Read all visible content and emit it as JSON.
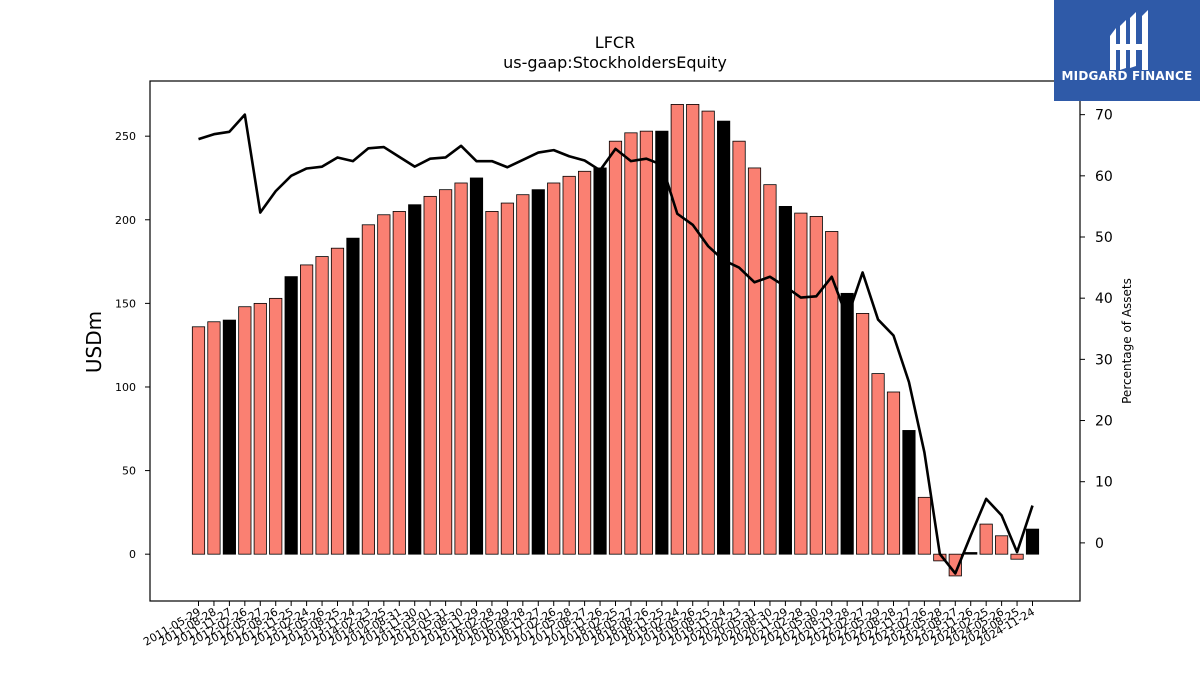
{
  "chart_data": {
    "type": "bar",
    "title": "LFCR",
    "subtitle": "us-gaap:StockholdersEquity",
    "ylabel": "USDm",
    "y2label": "Percentage of Assets",
    "ylim": [
      -28,
      283
    ],
    "y2lim": [
      -9.5,
      75.5
    ],
    "yticks": [
      0,
      50,
      100,
      150,
      200,
      250
    ],
    "y2ticks": [
      0,
      10,
      20,
      30,
      40,
      50,
      60,
      70
    ],
    "colors": {
      "bar": "#fa8072",
      "bar_highlight": "#000000",
      "line": "#000000"
    },
    "categories": [
      "2011-05-29",
      "2011-08-28",
      "2011-11-27",
      "2012-02-26",
      "2012-05-27",
      "2012-08-26",
      "2012-11-25",
      "2013-02-24",
      "2013-05-26",
      "2013-08-25",
      "2013-11-24",
      "2014-02-23",
      "2014-05-25",
      "2014-08-31",
      "2014-11-30",
      "2015-03-01",
      "2015-05-31",
      "2015-08-30",
      "2015-11-29",
      "2016-02-28",
      "2016-05-29",
      "2016-08-28",
      "2016-11-27",
      "2017-02-26",
      "2017-05-28",
      "2017-08-27",
      "2017-11-26",
      "2018-02-25",
      "2018-05-27",
      "2018-08-26",
      "2018-11-25",
      "2019-02-24",
      "2019-05-26",
      "2019-08-25",
      "2019-11-24",
      "2020-02-23",
      "2020-05-31",
      "2020-08-30",
      "2020-11-29",
      "2021-02-28",
      "2021-05-30",
      "2021-08-29",
      "2021-11-28",
      "2022-02-27",
      "2022-05-29",
      "2022-08-28",
      "2022-11-27",
      "2023-02-26",
      "2023-05-28",
      "2023-08-27",
      "2023-11-26",
      "2024-02-25",
      "2024-05-26",
      "2024-08-25",
      "2024-11-24"
    ],
    "tick_labels": [
      "2011-05-29",
      "2011-08-28",
      "2011-11-27",
      "2012-02-26",
      "2012-05-27",
      "2012-08-26",
      "2012-11-25",
      "2013-02-24",
      "2013-05-26",
      "2013-08-25",
      "2013-11-24",
      "2014-02-23",
      "2014-05-25",
      "2014-08-31",
      "2014-11-30",
      "2015-03-01",
      "2015-05-31",
      "2015-08-30",
      "2015-11-29",
      "2016-02-28",
      "2016-05-29",
      "2016-08-28",
      "2016-11-27",
      "2017-02-26",
      "2017-05-28",
      "2017-08-27",
      "2017-11-26",
      "2018-02-25",
      "2018-05-27",
      "2018-08-26",
      "2018-11-25",
      "2019-02-24",
      "2019-05-26",
      "2019-08-25",
      "2019-11-24",
      "2020-02-23",
      "2020-05-31",
      "2020-08-30",
      "2020-11-29",
      "2021-02-28",
      "2021-05-30",
      "2021-08-29",
      "2021-11-28",
      "2022-02-27",
      "2022-05-29",
      "2022-08-28",
      "2022-11-27",
      "2023-02-26",
      "2023-05-28",
      "2023-08-27",
      "2023-11-26",
      "2024-02-25",
      "2024-05-26",
      "2024-08-25",
      "2024-11-24"
    ],
    "series": [
      {
        "name": "StockholdersEquity",
        "type": "bar",
        "axis": "left",
        "values": [
          136,
          139,
          140,
          148,
          150,
          153,
          166,
          173,
          178,
          183,
          189,
          197,
          203,
          205,
          209,
          214,
          218,
          222,
          225,
          205,
          210,
          215,
          218,
          222,
          226,
          229,
          231,
          247,
          252,
          253,
          253,
          269,
          269,
          265,
          259,
          247,
          231,
          221,
          208,
          204,
          202,
          193,
          156,
          144,
          108,
          97,
          74,
          34,
          -4,
          -13,
          1,
          18,
          11,
          -3,
          15
        ],
        "highlight": [
          false,
          false,
          true,
          false,
          false,
          false,
          true,
          false,
          false,
          false,
          true,
          false,
          false,
          false,
          true,
          false,
          false,
          false,
          true,
          false,
          false,
          false,
          true,
          false,
          false,
          false,
          true,
          false,
          false,
          false,
          true,
          false,
          false,
          false,
          true,
          false,
          false,
          false,
          true,
          false,
          false,
          false,
          true,
          false,
          false,
          false,
          true,
          false,
          false,
          false,
          true,
          false,
          false,
          false,
          true
        ]
      },
      {
        "name": "Percentage of Assets",
        "type": "line",
        "axis": "right",
        "values": [
          66.0,
          66.8,
          67.2,
          70.0,
          54.0,
          57.5,
          60.0,
          61.2,
          61.5,
          63.0,
          62.4,
          64.5,
          64.7,
          63.1,
          61.5,
          62.8,
          63.0,
          64.9,
          62.4,
          62.4,
          61.4,
          62.6,
          63.8,
          64.2,
          63.2,
          62.5,
          60.9,
          64.4,
          62.4,
          62.8,
          61.8,
          53.8,
          52.0,
          48.5,
          46.2,
          45.0,
          42.6,
          43.5,
          41.9,
          40.1,
          40.3,
          43.5,
          36.8,
          44.2,
          36.5,
          33.9,
          26.3,
          14.8,
          -1.8,
          -5.0,
          1.2,
          7.2,
          4.5,
          -1.5,
          6.1
        ]
      }
    ]
  },
  "logo": {
    "text": "MIDGARD FINANCE",
    "icon": "midgard-logo-icon",
    "background": "#2f5aa8"
  }
}
